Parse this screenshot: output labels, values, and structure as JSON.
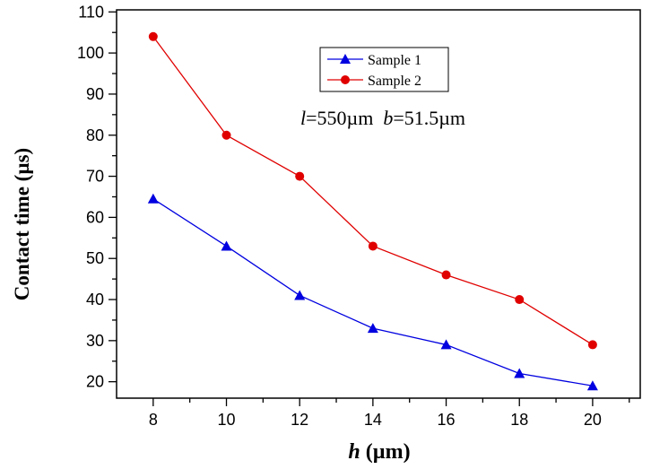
{
  "chart_data": {
    "type": "line",
    "title": "",
    "xlabel": "h",
    "xlabel_unit": "(µm)",
    "ylabel": "Contact time  (µs)",
    "x": [
      8,
      10,
      12,
      14,
      16,
      18,
      20
    ],
    "xlim": [
      7,
      21.3
    ],
    "ylim": [
      16,
      110.5
    ],
    "xticks": [
      8,
      10,
      12,
      14,
      16,
      18,
      20
    ],
    "yticks": [
      20,
      30,
      40,
      50,
      60,
      70,
      80,
      90,
      100,
      110
    ],
    "grid": false,
    "legend_position": "top-center",
    "series": [
      {
        "name": "Sample 1",
        "color": "#0000e0",
        "marker": "triangle",
        "values": [
          64.5,
          53,
          41,
          33,
          29,
          22,
          19
        ]
      },
      {
        "name": "Sample 2",
        "color": "#e00000",
        "marker": "circle",
        "values": [
          104,
          80,
          70,
          53,
          46,
          40,
          29
        ]
      }
    ],
    "annotations": [
      {
        "parts": [
          {
            "text": "l",
            "italic": true
          },
          {
            "text": "=550µm  "
          },
          {
            "text": "b",
            "italic": true
          },
          {
            "text": "=51.5µm"
          }
        ]
      }
    ]
  }
}
